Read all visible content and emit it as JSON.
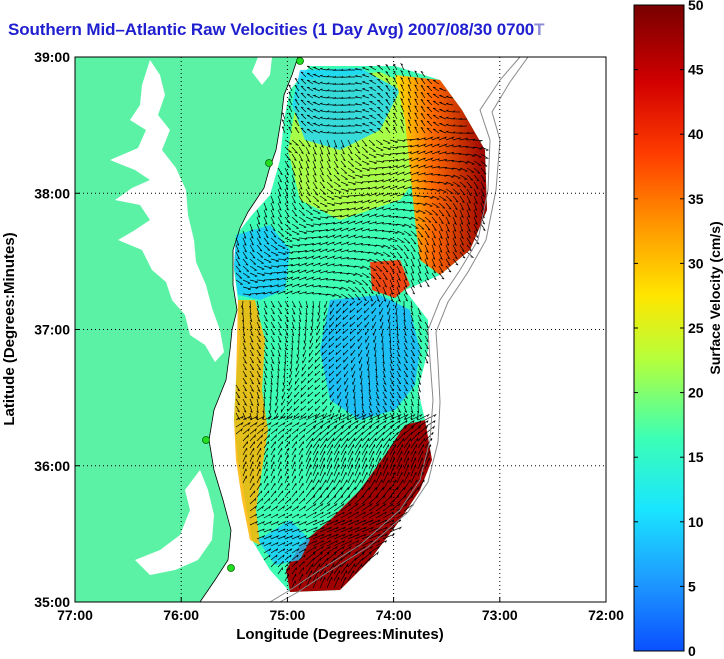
{
  "title": "Southern Mid-Atlantic Raw Velocities (1 Day Avg) 2007/08/30 0700 GMT",
  "title_visible": "Southern Mid–Atlantic Raw Velocities (1 Day Avg) 2007/08/30 0700",
  "title_tail": "T",
  "x_axis": {
    "label": "Longitude (Degrees:Minutes)",
    "ticks": [
      "77:00",
      "76:00",
      "75:00",
      "74:00",
      "73:00",
      "72:00"
    ],
    "range_deg": [
      -77,
      -72
    ]
  },
  "y_axis": {
    "label": "Latitude (Degrees:Minutes)",
    "ticks": [
      "35:00",
      "36:00",
      "37:00",
      "38:00",
      "39:00"
    ],
    "range_deg": [
      35,
      39
    ]
  },
  "colorbar": {
    "label": "Surface Velocity (cm/s)",
    "ticks": [
      "0",
      "5",
      "10",
      "15",
      "20",
      "25",
      "30",
      "35",
      "40",
      "45",
      "50"
    ],
    "range": [
      0,
      50
    ],
    "colors": [
      "#0a50ff",
      "#1e9bff",
      "#19e6ff",
      "#3cffb4",
      "#d2ff28",
      "#ffe600",
      "#ff9600",
      "#ff3c00",
      "#d20000",
      "#780000"
    ]
  },
  "land_color": "#5cf2a5",
  "grid": "dotted"
}
